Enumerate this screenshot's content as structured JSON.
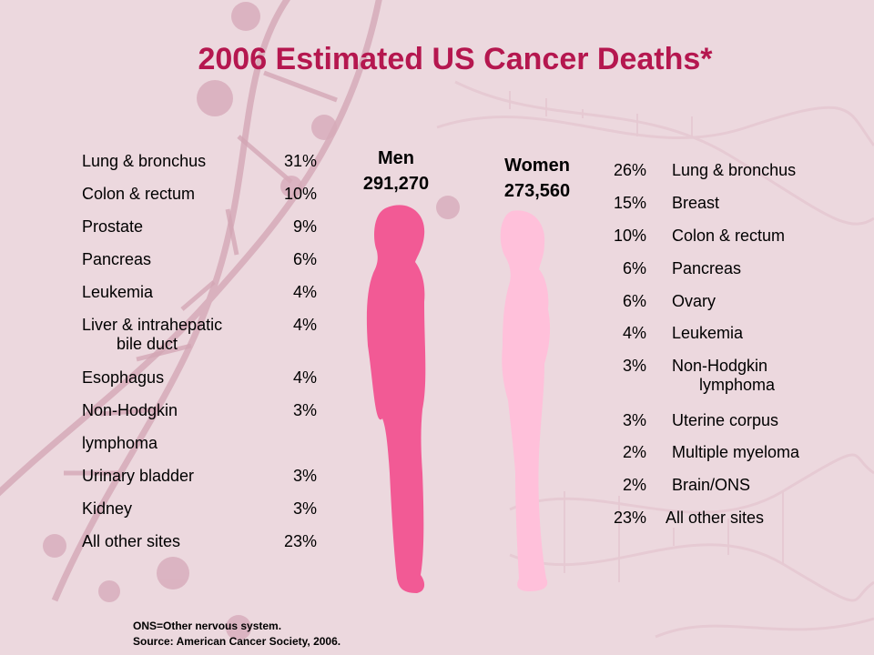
{
  "title": "2006 Estimated US Cancer Deaths*",
  "men": {
    "label": "Men",
    "total": "291,270",
    "items": [
      {
        "site": "Lung & bronchus",
        "pct": "31%"
      },
      {
        "site": "Colon & rectum",
        "pct": "10%"
      },
      {
        "site": "Prostate",
        "pct": "9%"
      },
      {
        "site": "Pancreas",
        "pct": "6%"
      },
      {
        "site": "Leukemia",
        "pct": "4%"
      },
      {
        "site": "Liver & intrahepatic",
        "site2": "bile duct",
        "pct": "4%"
      },
      {
        "site": "Esophagus",
        "pct": "4%"
      },
      {
        "site": "Non-Hodgkin",
        "pct": "3%"
      },
      {
        "site": "lymphoma",
        "pct": ""
      },
      {
        "site": "Urinary bladder",
        "pct": "3%"
      },
      {
        "site": "Kidney",
        "pct": "3%"
      },
      {
        "site": "All other sites",
        "pct": "23%"
      }
    ]
  },
  "women": {
    "label": "Women",
    "total": "273,560",
    "items": [
      {
        "site": "Lung & bronchus",
        "pct": "26%"
      },
      {
        "site": "Breast",
        "pct": "15%"
      },
      {
        "site": "Colon & rectum",
        "pct": "10%"
      },
      {
        "site": "Pancreas",
        "pct": "6%"
      },
      {
        "site": "Ovary",
        "pct": "6%"
      },
      {
        "site": "Leukemia",
        "pct": "4%"
      },
      {
        "site": "Non-Hodgkin",
        "site2": "lymphoma",
        "pct": "3%"
      },
      {
        "site": "Uterine corpus",
        "pct": "3%"
      },
      {
        "site": "Multiple myeloma",
        "pct": "2%"
      },
      {
        "site": "Brain/ONS",
        "pct": "2%"
      },
      {
        "site": "All other sites",
        "pct": "23%"
      }
    ]
  },
  "footnote": {
    "line1": "ONS=Other nervous system.",
    "line2": "Source: American Cancer Society, 2006."
  },
  "colors": {
    "title": "#b5174f",
    "men_figure": "#f25a95",
    "women_figure": "#ffc0da",
    "background": "#ecd8de"
  }
}
